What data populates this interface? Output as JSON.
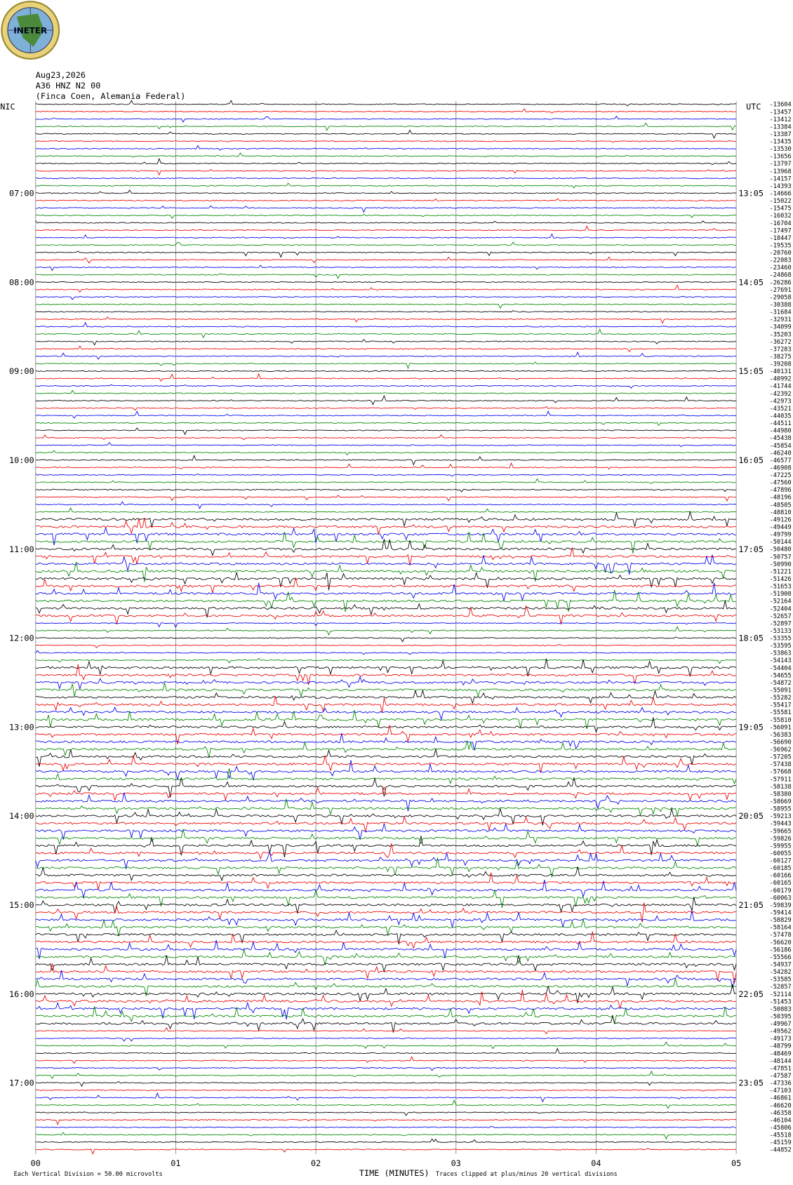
{
  "logo": "INETER",
  "header": {
    "date": "Aug23,2026",
    "channel": "A36 HNZ N2 00",
    "location": "(Finca Coen, Alemania Federal)"
  },
  "left_zone": "NIC",
  "right_zone": "UTC",
  "local_times": [
    "07:00",
    "08:00",
    "09:00",
    "10:00",
    "11:00",
    "12:00",
    "13:00",
    "14:00",
    "15:00",
    "16:00",
    "17:00"
  ],
  "utc_times": [
    "13:05",
    "14:05",
    "15:05",
    "16:05",
    "17:05",
    "18:05",
    "19:05",
    "20:05",
    "21:05",
    "22:05",
    "23:05"
  ],
  "trace_offsets": [
    "-13604",
    "-13457",
    "-13412",
    "-13384",
    "-13387",
    "-13435",
    "-13530",
    "-13656",
    "-13797",
    "-13968",
    "-14157",
    "-14393",
    "-14666",
    "-15022",
    "-15475",
    "-16032",
    "-16704",
    "-17497",
    "-18447",
    "-19535",
    "-20760",
    "-22083",
    "-23460",
    "-24868",
    "-26286",
    "-27691",
    "-29058",
    "-30388",
    "-31684",
    "-32931",
    "-34099",
    "-35203",
    "-36272",
    "-37283",
    "-38275",
    "-39208",
    "-40131",
    "-40992",
    "-41744",
    "-42392",
    "-42973",
    "-43521",
    "-44035",
    "-44511",
    "-44980",
    "-45438",
    "-45854",
    "-46240",
    "-46577",
    "-46908",
    "-47225",
    "-47560",
    "-47896",
    "-48196",
    "-48505",
    "-48810",
    "-49126",
    "-49449",
    "-49799",
    "-50144",
    "-50480",
    "-50757",
    "-50990",
    "-51221",
    "-51426",
    "-51653",
    "-51908",
    "-52164",
    "-52404",
    "-52657",
    "-52897",
    "-53133",
    "-53355",
    "-53595",
    "-53863",
    "-54143",
    "-54404",
    "-54655",
    "-54872",
    "-55091",
    "-55282",
    "-55417",
    "-55581",
    "-55810",
    "-56091",
    "-56383",
    "-56690",
    "-56962",
    "-57205",
    "-57438",
    "-57668",
    "-57911",
    "-58138",
    "-58380",
    "-58669",
    "-58955",
    "-59213",
    "-59443",
    "-59665",
    "-59826",
    "-59955",
    "-60055",
    "-60127",
    "-60185",
    "-60166",
    "-60165",
    "-60179",
    "-60063",
    "-59839",
    "-59414",
    "-58829",
    "-58164",
    "-57478",
    "-56620",
    "-56186",
    "-55566",
    "-54937",
    "-54282",
    "-53585",
    "-52857",
    "-52114",
    "-51453",
    "-50883",
    "-50395",
    "-49967",
    "-49562",
    "-49173",
    "-48799",
    "-48469",
    "-48144",
    "-47851",
    "-47587",
    "-47336",
    "-47103",
    "-46861",
    "-46620",
    "-46358",
    "-46104",
    "-45806",
    "-45518",
    "-45159",
    "-44852"
  ],
  "x_axis": {
    "title": "TIME (MINUTES)",
    "ticks": [
      "00",
      "01",
      "02",
      "03",
      "04",
      "05"
    ]
  },
  "footer": {
    "scale_note": "Each Vertical Division =   50.00 microvolts",
    "clip_note": "Traces clipped at plus/minus 20 vertical divisions"
  }
}
